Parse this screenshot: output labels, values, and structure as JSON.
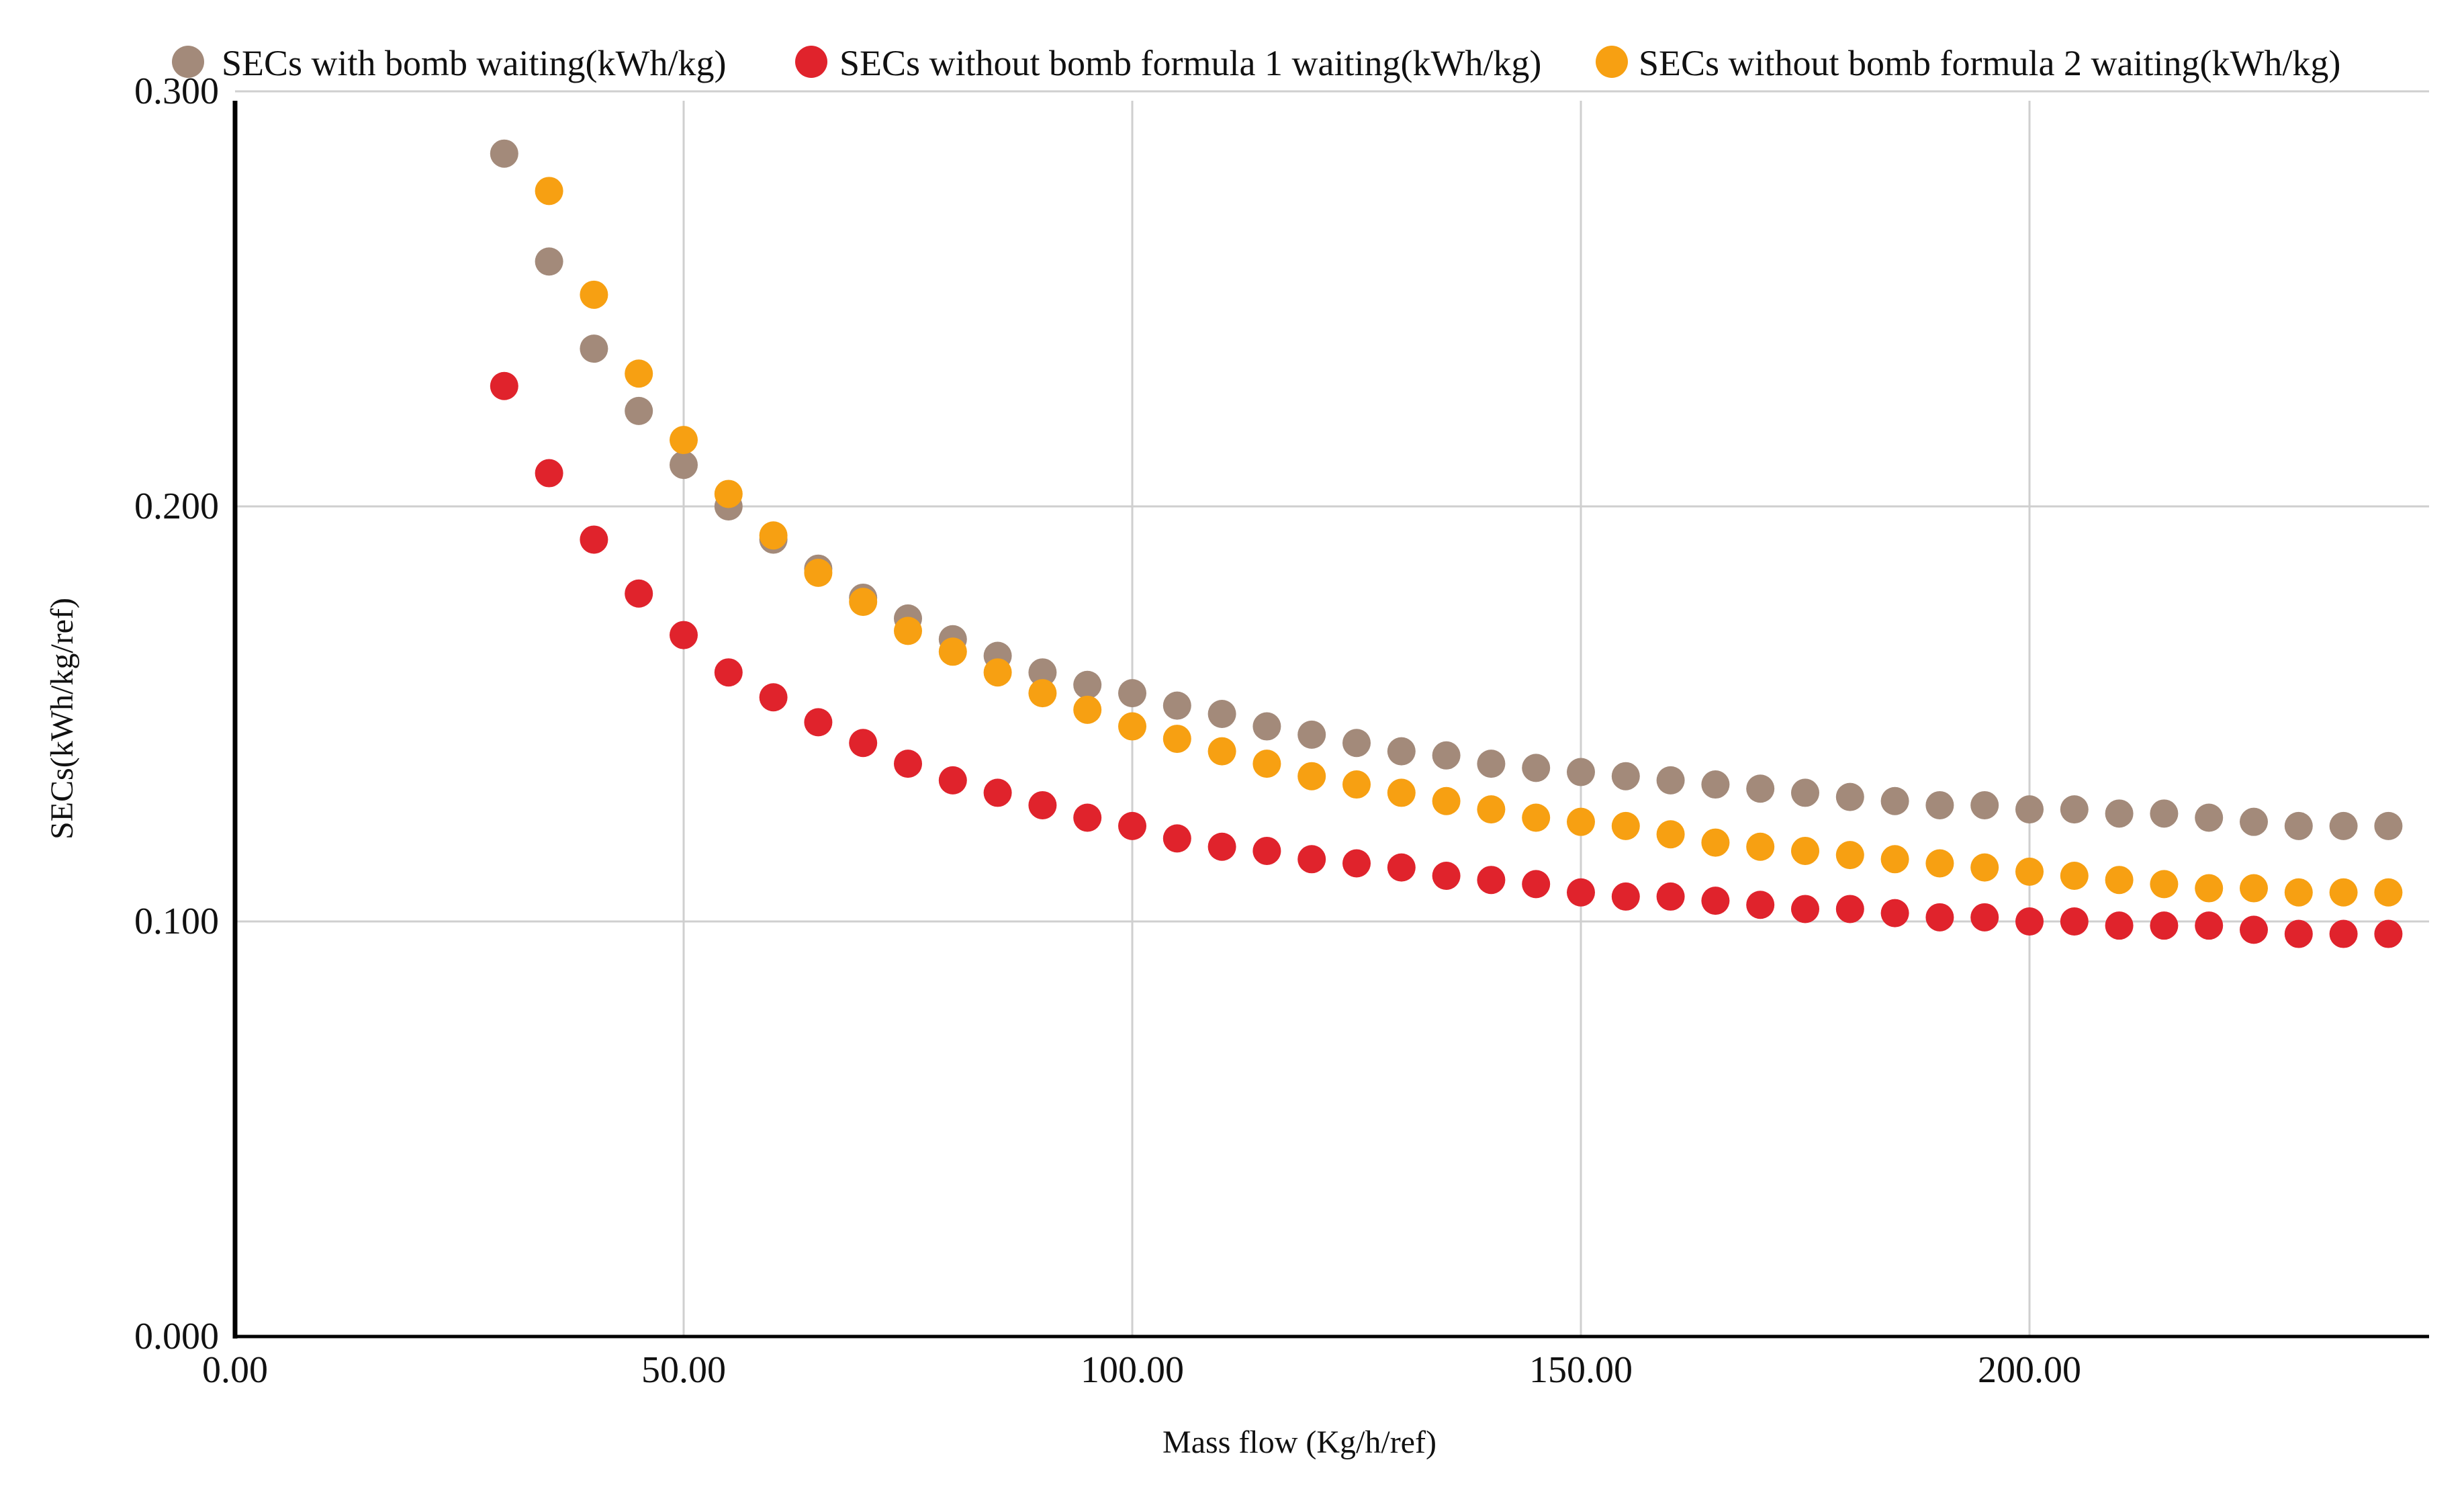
{
  "chart_data": {
    "type": "scatter",
    "title": "",
    "xlabel": "Mass flow (Kg/h/ref)",
    "ylabel": "SECs(kWh/kg/ref)",
    "xlim": [
      0,
      242
    ],
    "ylim": [
      0,
      0.3
    ],
    "x_ticks": [
      0,
      50,
      100,
      150,
      200
    ],
    "x_tick_labels": [
      "0.00",
      "50.00",
      "100.00",
      "150.00",
      "200.00"
    ],
    "y_ticks": [
      0,
      0.1,
      0.2,
      0.3
    ],
    "y_tick_labels": [
      "0.000",
      "0.100",
      "0.200",
      "0.300"
    ],
    "grid": true,
    "legend_position": "top",
    "x": [
      30,
      35,
      40,
      45,
      50,
      55,
      60,
      65,
      70,
      75,
      80,
      85,
      90,
      95,
      100,
      105,
      110,
      115,
      120,
      125,
      130,
      135,
      140,
      145,
      150,
      155,
      160,
      165,
      170,
      175,
      180,
      185,
      190,
      195,
      200,
      205,
      210,
      215,
      220,
      225,
      230,
      235,
      240
    ],
    "series": [
      {
        "name": "SECs with bomb waiting(kWh/kg)",
        "color": "#A38A7A",
        "x": [
          30,
          35,
          40,
          45,
          50,
          55,
          60,
          65,
          70,
          75,
          80,
          85,
          90,
          95,
          100,
          105,
          110,
          115,
          120,
          125,
          130,
          135,
          140,
          145,
          150,
          155,
          160,
          165,
          170,
          175,
          180,
          185,
          190,
          195,
          200,
          205,
          210,
          215,
          220,
          225,
          230,
          235,
          240
        ],
        "values": [
          0.285,
          0.259,
          0.238,
          0.223,
          0.21,
          0.2,
          0.192,
          0.185,
          0.178,
          0.173,
          0.168,
          0.164,
          0.16,
          0.157,
          0.155,
          0.152,
          0.15,
          0.147,
          0.145,
          0.143,
          0.141,
          0.14,
          0.138,
          0.137,
          0.136,
          0.135,
          0.134,
          0.133,
          0.132,
          0.131,
          0.13,
          0.129,
          0.128,
          0.128,
          0.127,
          0.127,
          0.126,
          0.126,
          0.125,
          0.124,
          0.123,
          0.123,
          0.123
        ]
      },
      {
        "name": "SECs without bomb formula 1 waiting(kWh/kg)",
        "color": "#E0232C",
        "x": [
          30,
          35,
          40,
          45,
          50,
          55,
          60,
          65,
          70,
          75,
          80,
          85,
          90,
          95,
          100,
          105,
          110,
          115,
          120,
          125,
          130,
          135,
          140,
          145,
          150,
          155,
          160,
          165,
          170,
          175,
          180,
          185,
          190,
          195,
          200,
          205,
          210,
          215,
          220,
          225,
          230,
          235,
          240
        ],
        "values": [
          0.229,
          0.208,
          0.192,
          0.179,
          0.169,
          0.16,
          0.154,
          0.148,
          0.143,
          0.138,
          0.134,
          0.131,
          0.128,
          0.125,
          0.123,
          0.12,
          0.118,
          0.117,
          0.115,
          0.114,
          0.113,
          0.111,
          0.11,
          0.109,
          0.107,
          0.106,
          0.106,
          0.105,
          0.104,
          0.103,
          0.103,
          0.102,
          0.101,
          0.101,
          0.1,
          0.1,
          0.099,
          0.099,
          0.099,
          0.098,
          0.097,
          0.097,
          0.097
        ]
      },
      {
        "name": "SECs without bomb formula 2 waiting(kWh/kg)",
        "color": "#F7A012",
        "x": [
          35,
          40,
          45,
          50,
          55,
          60,
          65,
          70,
          75,
          80,
          85,
          90,
          95,
          100,
          105,
          110,
          115,
          120,
          125,
          130,
          135,
          140,
          145,
          150,
          155,
          160,
          165,
          170,
          175,
          180,
          185,
          190,
          195,
          200,
          205,
          210,
          215,
          220,
          225,
          230,
          235,
          240
        ],
        "values": [
          0.276,
          0.251,
          0.232,
          0.216,
          0.203,
          0.193,
          0.184,
          0.177,
          0.17,
          0.165,
          0.16,
          0.155,
          0.151,
          0.147,
          0.144,
          0.141,
          0.138,
          0.135,
          0.133,
          0.131,
          0.129,
          0.127,
          0.125,
          0.124,
          0.123,
          0.121,
          0.119,
          0.118,
          0.117,
          0.116,
          0.115,
          0.114,
          0.113,
          0.112,
          0.111,
          0.11,
          0.109,
          0.108,
          0.108,
          0.107,
          0.107,
          0.107
        ]
      }
    ]
  }
}
